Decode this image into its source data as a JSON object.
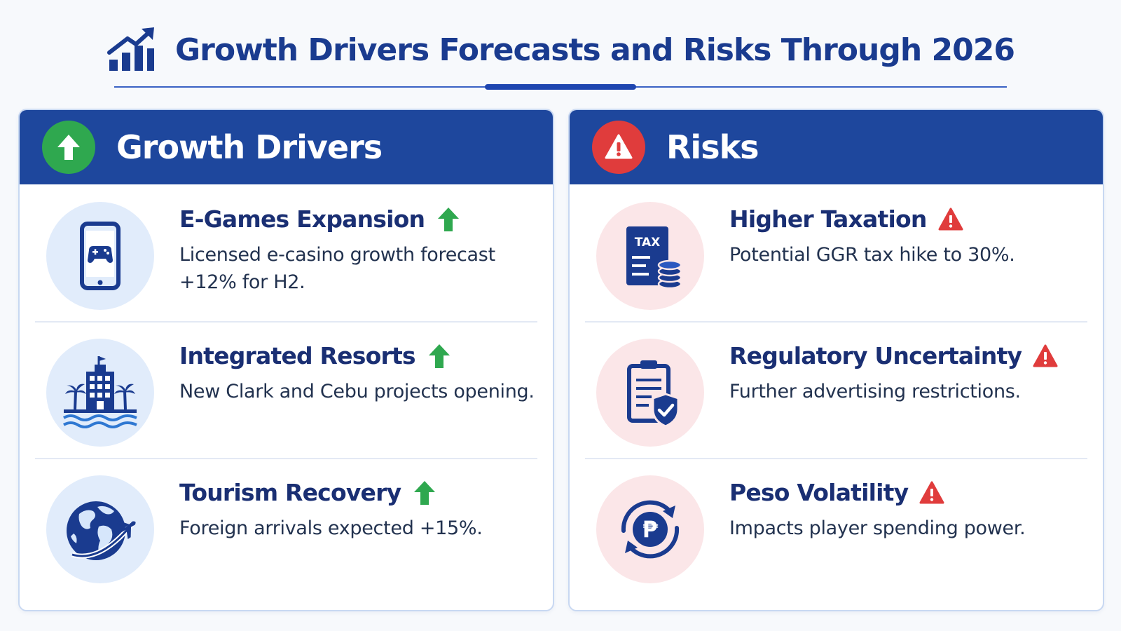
{
  "page": {
    "title": "Growth Drivers Forecasts and Risks Through 2026",
    "title_icon": "bar-chart-rising-icon"
  },
  "colors": {
    "navy": "#1e479d",
    "title_blue": "#1a3b8f",
    "growth_green": "#2fa84f",
    "risk_red": "#e03c3c",
    "growth_disc": "#e1ecfb",
    "risk_disc": "#fbe6e8"
  },
  "growth": {
    "heading": "Growth Drivers",
    "badge_icon": "arrow-up-icon",
    "items": [
      {
        "title": "E-Games Expansion",
        "description": "Licensed e-casino growth forecast +12% for H2.",
        "icon": "mobile-gamepad-icon",
        "trend_icon": "green-up-arrow-icon"
      },
      {
        "title": "Integrated Resorts",
        "description": "New Clark and Cebu projects opening.",
        "icon": "resort-building-icon",
        "trend_icon": "green-up-arrow-icon"
      },
      {
        "title": "Tourism Recovery",
        "description": "Foreign arrivals expected +15%.",
        "icon": "globe-airplane-icon",
        "trend_icon": "green-up-arrow-icon"
      }
    ]
  },
  "risks": {
    "heading": "Risks",
    "badge_icon": "warning-icon",
    "items": [
      {
        "title": "Higher Taxation",
        "description": "Potential GGR tax hike to 30%.",
        "icon": "tax-document-icon",
        "icon_label": "TAX",
        "trend_icon": "red-warning-icon"
      },
      {
        "title": "Regulatory Uncertainty",
        "description": "Further advertising restrictions.",
        "icon": "document-shield-icon",
        "trend_icon": "red-warning-icon"
      },
      {
        "title": "Peso Volatility",
        "description": "Impacts player spending power.",
        "icon": "peso-exchange-icon",
        "icon_label": "₱",
        "trend_icon": "red-warning-icon"
      }
    ]
  }
}
